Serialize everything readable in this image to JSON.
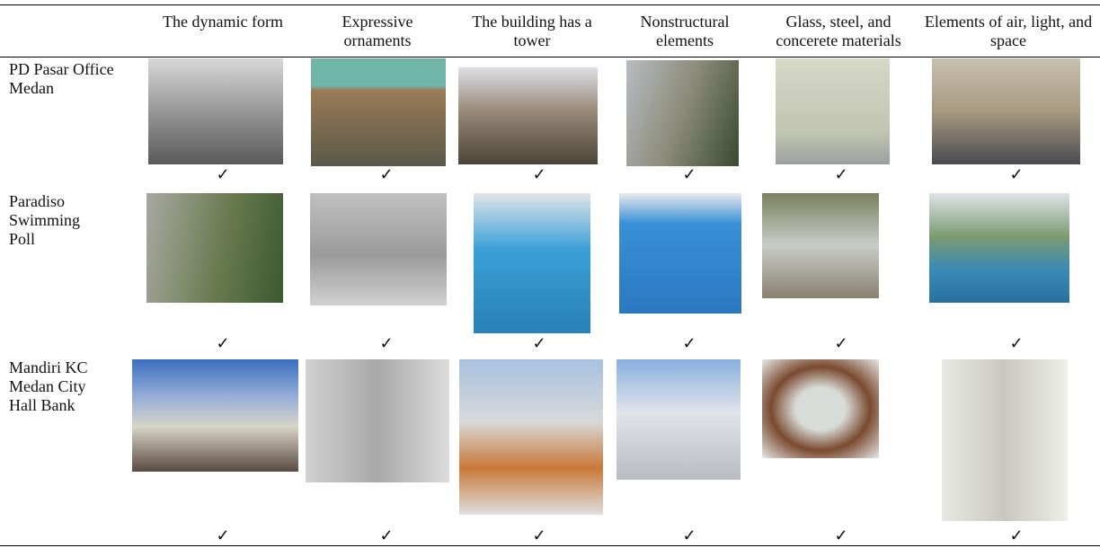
{
  "table": {
    "header": [
      "The dynamic form",
      "Expressive ornaments",
      "The building has a tower",
      "Nonstructural elements",
      "Glass, steel, and concerete materials",
      "Elements of air, light, and space"
    ],
    "rows": [
      {
        "label": "PD Pasar Office Medan",
        "checks": [
          "✓",
          "✓",
          "✓",
          "✓",
          "✓",
          "✓"
        ]
      },
      {
        "label": "Paradiso Swimming Poll",
        "checks": [
          "✓",
          "✓",
          "✓",
          "✓",
          "✓",
          "✓"
        ]
      },
      {
        "label": "Mandiri KC Medan City Hall Bank",
        "checks": [
          "✓",
          "✓",
          "✓",
          "✓",
          "✓",
          "✓"
        ]
      }
    ]
  }
}
